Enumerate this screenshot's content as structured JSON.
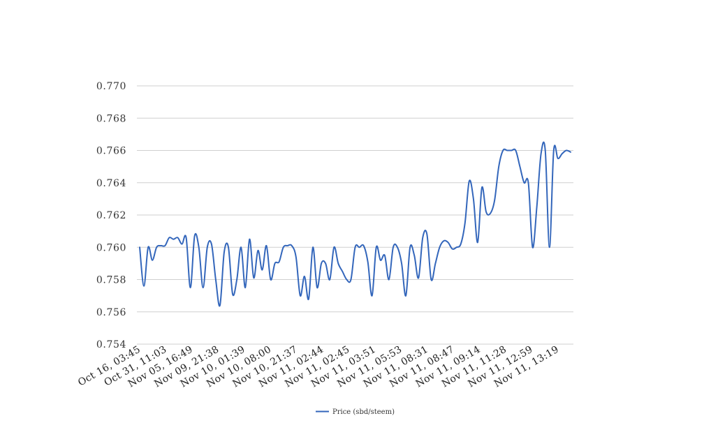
{
  "chart_data": {
    "type": "line",
    "title": "",
    "xlabel": "",
    "ylabel": "",
    "ylim": [
      0.754,
      0.77
    ],
    "y_ticks": [
      "0.754",
      "0.756",
      "0.758",
      "0.760",
      "0.762",
      "0.764",
      "0.766",
      "0.768",
      "0.770"
    ],
    "x_tick_labels": [
      "Oct 16, 03:45",
      "Oct 31, 11:03",
      "Nov 05, 16:49",
      "Nov 09, 21:38",
      "Nov 10, 01:39",
      "Nov 10, 08:00",
      "Nov 10, 21:37",
      "Nov 11, 02:44",
      "Nov 11, 02:45",
      "Nov 11, 03:51",
      "Nov 11, 05:53",
      "Nov 11, 08:31",
      "Nov 11, 08:47",
      "Nov 11, 09:14",
      "Nov 11, 11:28",
      "Nov 11, 12:59",
      "Nov 11, 13:19"
    ],
    "grid": true,
    "legend_position": "bottom",
    "color": "#3366bb",
    "series": [
      {
        "name": "Price (sbd/steem)",
        "values": [
          0.76,
          0.7576,
          0.76,
          0.7592,
          0.76,
          0.7601,
          0.7601,
          0.7606,
          0.7605,
          0.7606,
          0.7602,
          0.7606,
          0.7575,
          0.7607,
          0.76,
          0.7575,
          0.76,
          0.7602,
          0.758,
          0.7564,
          0.7597,
          0.76,
          0.7571,
          0.758,
          0.76,
          0.7575,
          0.7605,
          0.7581,
          0.7598,
          0.7586,
          0.7601,
          0.758,
          0.759,
          0.7591,
          0.76,
          0.7601,
          0.7601,
          0.7594,
          0.757,
          0.7582,
          0.7568,
          0.76,
          0.7575,
          0.759,
          0.759,
          0.758,
          0.76,
          0.759,
          0.7585,
          0.758,
          0.758,
          0.76,
          0.76,
          0.7601,
          0.7591,
          0.757,
          0.76,
          0.7592,
          0.7595,
          0.758,
          0.76,
          0.76,
          0.759,
          0.757,
          0.76,
          0.7595,
          0.7581,
          0.7606,
          0.7608,
          0.758,
          0.759,
          0.76,
          0.7604,
          0.7603,
          0.7599,
          0.76,
          0.7602,
          0.7615,
          0.7641,
          0.763,
          0.7603,
          0.7637,
          0.7622,
          0.7621,
          0.7629,
          0.765,
          0.766,
          0.766,
          0.766,
          0.766,
          0.765,
          0.764,
          0.764,
          0.76,
          0.7625,
          0.7658,
          0.766,
          0.76,
          0.766,
          0.7655,
          0.7658,
          0.766,
          0.7659
        ]
      }
    ]
  }
}
